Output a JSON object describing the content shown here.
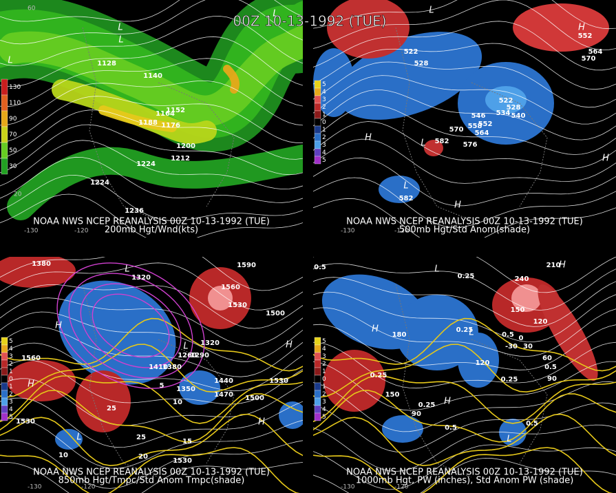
{
  "title": "00Z 10-13-1992 (TUE)",
  "panels": [
    {
      "caption": [
        "NOAA NWS NCEP REANALYSIS 00Z 10-13-1992 (TUE)",
        "200mb Hgt/Wnd(kts)"
      ],
      "legend": [
        "130",
        "110",
        "90",
        "70",
        "50",
        "30"
      ],
      "labels": [
        "1128",
        "1140",
        "1152",
        "1164",
        "1188",
        "1176",
        "1200",
        "1212",
        "1224",
        "1224",
        "1236"
      ],
      "markers": [
        "L",
        "L",
        "L",
        "L"
      ],
      "axis_labels": [
        "-130",
        "-120",
        "20",
        "60"
      ]
    },
    {
      "caption": [
        "NOAA NWS NCEP REANALYSIS 00Z 10-13-1992 (TUE)",
        "500mb Hgt/Std Anom(shade)"
      ],
      "legend": [
        "5",
        "4",
        "3",
        "2",
        "1",
        "0",
        "1",
        "2",
        "3",
        "4",
        "5"
      ],
      "labels": [
        "522",
        "528",
        "522",
        "528",
        "534",
        "540",
        "546",
        "552",
        "558",
        "564",
        "570",
        "576",
        "582",
        "582",
        "564",
        "570",
        "552"
      ],
      "markers": [
        "H",
        "H",
        "L",
        "H",
        "L",
        "H",
        "L"
      ],
      "axis_labels": [
        "-130",
        "-120"
      ]
    },
    {
      "caption": [
        "NOAA NWS NCEP REANALYSIS 00Z 10-13-1992 (TUE)",
        "850mb Hgt/Tmpc/Std Anom Tmpc(shade)"
      ],
      "legend": [
        "5",
        "4",
        "3",
        "2",
        "1",
        "0",
        "1",
        "2",
        "3",
        "4",
        "5"
      ],
      "labels": [
        "1380",
        "1320",
        "1560",
        "1530",
        "1500",
        "1590",
        "1410",
        "1380",
        "1290",
        "1260",
        "1350",
        "1320",
        "1440",
        "1470",
        "1500",
        "1530",
        "1560",
        "1530",
        "1530",
        "25",
        "25",
        "20",
        "15",
        "10",
        "5",
        "10"
      ],
      "markers": [
        "H",
        "H",
        "L",
        "H",
        "H",
        "L",
        "L"
      ],
      "axis_labels": [
        "-130",
        "-120"
      ]
    },
    {
      "caption": [
        "NOAA NWS NCEP REANALYSIS 00Z 10-13-1992 (TUE)",
        "1000mb Hgt, PW (inches), Std Anom PW (shade)"
      ],
      "legend": [
        "5",
        "4",
        "3",
        "2",
        "1",
        "0",
        "1",
        "2",
        "3",
        "4",
        "5"
      ],
      "labels": [
        "0.5",
        "0.25",
        "0.25",
        "0.25",
        "0.5",
        "0.5",
        "0.25",
        "0.25",
        "0.5",
        "0.5",
        "150",
        "120",
        "90",
        "60",
        "30",
        "0",
        "-30",
        "240",
        "210",
        "180",
        "150",
        "120",
        "90"
      ],
      "markers": [
        "H",
        "L",
        "H",
        "H",
        "L",
        "L"
      ],
      "axis_labels": [
        "-130",
        "-120"
      ]
    }
  ]
}
